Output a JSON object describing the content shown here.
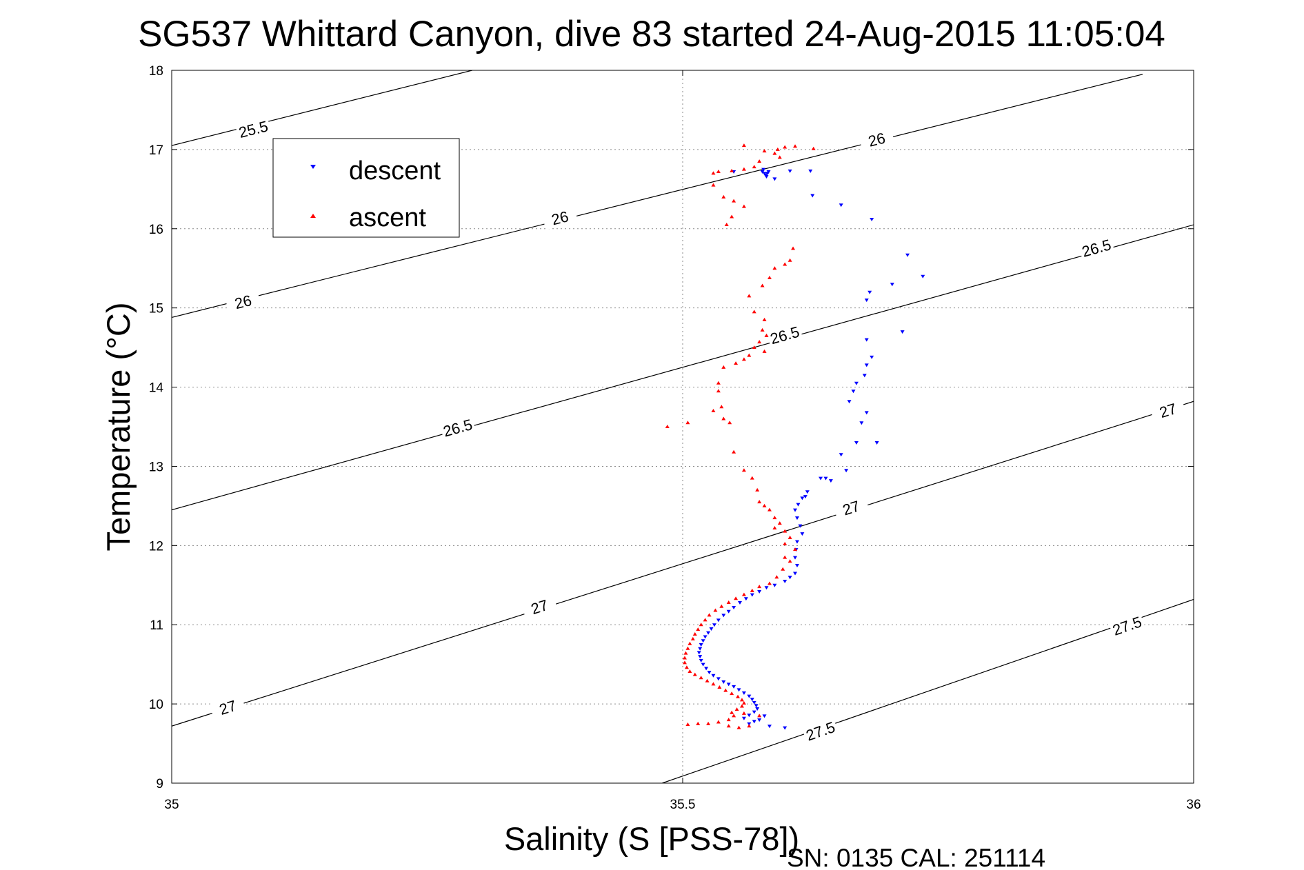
{
  "chart_data": {
    "type": "scatter",
    "title": "SG537 Whittard Canyon, dive 83 started 24-Aug-2015 11:05:04",
    "xlabel": "Salinity (S [PSS-78])",
    "ylabel": "Temperature (°C)",
    "xlim": [
      35,
      36
    ],
    "ylim": [
      9,
      18
    ],
    "xticks": [
      35,
      35.5,
      36
    ],
    "xtick_labels": [
      "35",
      "35.5",
      "36"
    ],
    "yticks": [
      9,
      10,
      11,
      12,
      13,
      14,
      15,
      16,
      17,
      18
    ],
    "ytick_labels": [
      "9",
      "10",
      "11",
      "12",
      "13",
      "14",
      "15",
      "16",
      "17",
      "18"
    ],
    "grid": true,
    "legend": {
      "position": "top-left",
      "entries": [
        "descent",
        "ascent"
      ]
    },
    "footer_text": "SN: 0135  CAL: 251114",
    "colors": {
      "descent": "#0000ff",
      "ascent": "#ff0000",
      "contour": "#000000"
    },
    "density_contours": [
      {
        "level": "25.5",
        "points": [
          [
            35.0,
            17.05
          ],
          [
            35.294,
            18.0
          ]
        ],
        "labels": [
          [
            35.08,
            17.25
          ]
        ]
      },
      {
        "level": "26",
        "points": [
          [
            35.0,
            14.88
          ],
          [
            35.95,
            17.95
          ]
        ],
        "labels": [
          [
            35.07,
            15.07
          ],
          [
            35.38,
            16.13
          ],
          [
            35.69,
            17.12
          ]
        ]
      },
      {
        "level": "26.5",
        "points": [
          [
            35.0,
            12.45
          ],
          [
            36.0,
            16.05
          ]
        ],
        "labels": [
          [
            35.28,
            13.48
          ],
          [
            35.6,
            14.65
          ],
          [
            35.905,
            15.75
          ]
        ]
      },
      {
        "level": "27",
        "points": [
          [
            35.0,
            9.72
          ],
          [
            36.0,
            13.82
          ]
        ],
        "labels": [
          [
            35.055,
            9.95
          ],
          [
            35.36,
            11.22
          ],
          [
            35.665,
            12.47
          ],
          [
            35.975,
            13.7
          ]
        ]
      },
      {
        "level": "27.5",
        "points": [
          [
            35.48,
            9.0
          ],
          [
            36.0,
            11.32
          ]
        ],
        "labels": [
          [
            35.635,
            9.65
          ],
          [
            35.935,
            10.98
          ]
        ]
      }
    ],
    "series": [
      {
        "name": "descent",
        "marker": "triangle-down",
        "points": [
          [
            35.578,
            16.72
          ],
          [
            35.58,
            16.7
          ],
          [
            35.581,
            16.68
          ],
          [
            35.582,
            16.66
          ],
          [
            35.583,
            16.7
          ],
          [
            35.579,
            16.75
          ],
          [
            35.584,
            16.72
          ],
          [
            35.55,
            16.72
          ],
          [
            35.59,
            16.63
          ],
          [
            35.605,
            16.73
          ],
          [
            35.625,
            16.73
          ],
          [
            35.627,
            16.42
          ],
          [
            35.655,
            16.3
          ],
          [
            35.685,
            16.12
          ],
          [
            35.72,
            15.67
          ],
          [
            35.735,
            15.4
          ],
          [
            35.705,
            15.3
          ],
          [
            35.683,
            15.2
          ],
          [
            35.68,
            15.1
          ],
          [
            35.715,
            14.7
          ],
          [
            35.68,
            14.6
          ],
          [
            35.685,
            14.38
          ],
          [
            35.68,
            14.28
          ],
          [
            35.678,
            14.15
          ],
          [
            35.67,
            14.05
          ],
          [
            35.667,
            13.95
          ],
          [
            35.663,
            13.82
          ],
          [
            35.68,
            13.68
          ],
          [
            35.675,
            13.55
          ],
          [
            35.69,
            13.3
          ],
          [
            35.67,
            13.3
          ],
          [
            35.655,
            13.15
          ],
          [
            35.66,
            12.95
          ],
          [
            35.64,
            12.85
          ],
          [
            35.635,
            12.85
          ],
          [
            35.645,
            12.82
          ],
          [
            35.622,
            12.68
          ],
          [
            35.62,
            12.62
          ],
          [
            35.617,
            12.6
          ],
          [
            35.613,
            12.52
          ],
          [
            35.61,
            12.45
          ],
          [
            35.612,
            12.35
          ],
          [
            35.615,
            12.25
          ],
          [
            35.617,
            12.15
          ],
          [
            35.612,
            12.05
          ],
          [
            35.611,
            11.95
          ],
          [
            35.61,
            11.85
          ],
          [
            35.612,
            11.75
          ],
          [
            35.61,
            11.65
          ],
          [
            35.605,
            11.6
          ],
          [
            35.6,
            11.55
          ],
          [
            35.59,
            11.5
          ],
          [
            35.582,
            11.47
          ],
          [
            35.575,
            11.42
          ],
          [
            35.568,
            11.38
          ],
          [
            35.562,
            11.33
          ],
          [
            35.556,
            11.28
          ],
          [
            35.55,
            11.22
          ],
          [
            35.545,
            11.17
          ],
          [
            35.54,
            11.12
          ],
          [
            35.535,
            11.06
          ],
          [
            35.531,
            11.0
          ],
          [
            35.528,
            10.95
          ],
          [
            35.525,
            10.9
          ],
          [
            35.522,
            10.85
          ],
          [
            35.52,
            10.8
          ],
          [
            35.518,
            10.75
          ],
          [
            35.517,
            10.7
          ],
          [
            35.516,
            10.65
          ],
          [
            35.517,
            10.6
          ],
          [
            35.518,
            10.55
          ],
          [
            35.52,
            10.5
          ],
          [
            35.523,
            10.45
          ],
          [
            35.526,
            10.4
          ],
          [
            35.53,
            10.36
          ],
          [
            35.535,
            10.32
          ],
          [
            35.54,
            10.28
          ],
          [
            35.545,
            10.25
          ],
          [
            35.55,
            10.22
          ],
          [
            35.555,
            10.18
          ],
          [
            35.56,
            10.14
          ],
          [
            35.565,
            10.1
          ],
          [
            35.568,
            10.06
          ],
          [
            35.57,
            10.02
          ],
          [
            35.572,
            9.98
          ],
          [
            35.573,
            9.94
          ],
          [
            35.57,
            9.9
          ],
          [
            35.565,
            9.86
          ],
          [
            35.56,
            9.82
          ],
          [
            35.57,
            9.78
          ],
          [
            35.565,
            9.75
          ],
          [
            35.575,
            9.8
          ],
          [
            35.58,
            9.85
          ],
          [
            35.585,
            9.72
          ],
          [
            35.6,
            9.7
          ]
        ]
      },
      {
        "name": "ascent",
        "marker": "triangle-up",
        "points": [
          [
            35.56,
            17.05
          ],
          [
            35.58,
            16.98
          ],
          [
            35.59,
            16.95
          ],
          [
            35.593,
            17.0
          ],
          [
            35.6,
            17.03
          ],
          [
            35.61,
            17.04
          ],
          [
            35.628,
            17.01
          ],
          [
            35.595,
            16.9
          ],
          [
            35.575,
            16.85
          ],
          [
            35.57,
            16.78
          ],
          [
            35.56,
            16.75
          ],
          [
            35.548,
            16.73
          ],
          [
            35.535,
            16.72
          ],
          [
            35.53,
            16.7
          ],
          [
            35.53,
            16.55
          ],
          [
            35.54,
            16.4
          ],
          [
            35.55,
            16.35
          ],
          [
            35.56,
            16.28
          ],
          [
            35.548,
            16.15
          ],
          [
            35.543,
            16.05
          ],
          [
            35.608,
            15.75
          ],
          [
            35.605,
            15.6
          ],
          [
            35.6,
            15.55
          ],
          [
            35.59,
            15.5
          ],
          [
            35.585,
            15.38
          ],
          [
            35.578,
            15.28
          ],
          [
            35.565,
            15.15
          ],
          [
            35.57,
            14.95
          ],
          [
            35.58,
            14.85
          ],
          [
            35.578,
            14.72
          ],
          [
            35.582,
            14.65
          ],
          [
            35.575,
            14.57
          ],
          [
            35.57,
            14.5
          ],
          [
            35.58,
            14.45
          ],
          [
            35.565,
            14.4
          ],
          [
            35.56,
            14.35
          ],
          [
            35.552,
            14.3
          ],
          [
            35.54,
            14.25
          ],
          [
            35.535,
            14.05
          ],
          [
            35.535,
            13.95
          ],
          [
            35.538,
            13.75
          ],
          [
            35.53,
            13.7
          ],
          [
            35.54,
            13.6
          ],
          [
            35.546,
            13.55
          ],
          [
            35.505,
            13.55
          ],
          [
            35.485,
            13.5
          ],
          [
            35.55,
            13.18
          ],
          [
            35.56,
            12.95
          ],
          [
            35.568,
            12.85
          ],
          [
            35.573,
            12.7
          ],
          [
            35.575,
            12.55
          ],
          [
            35.58,
            12.5
          ],
          [
            35.585,
            12.45
          ],
          [
            35.59,
            12.35
          ],
          [
            35.595,
            12.28
          ],
          [
            35.59,
            12.22
          ],
          [
            35.6,
            12.18
          ],
          [
            35.605,
            12.1
          ],
          [
            35.6,
            12.02
          ],
          [
            35.61,
            11.95
          ],
          [
            35.6,
            11.85
          ],
          [
            35.605,
            11.8
          ],
          [
            35.598,
            11.7
          ],
          [
            35.592,
            11.6
          ],
          [
            35.585,
            11.52
          ],
          [
            35.575,
            11.48
          ],
          [
            35.568,
            11.43
          ],
          [
            35.56,
            11.38
          ],
          [
            35.552,
            11.33
          ],
          [
            35.545,
            11.28
          ],
          [
            35.538,
            11.23
          ],
          [
            35.532,
            11.18
          ],
          [
            35.526,
            11.12
          ],
          [
            35.522,
            11.06
          ],
          [
            35.518,
            11.0
          ],
          [
            35.515,
            10.94
          ],
          [
            35.512,
            10.88
          ],
          [
            35.51,
            10.82
          ],
          [
            35.507,
            10.76
          ],
          [
            35.505,
            10.7
          ],
          [
            35.503,
            10.64
          ],
          [
            35.502,
            10.58
          ],
          [
            35.502,
            10.52
          ],
          [
            35.504,
            10.46
          ],
          [
            35.507,
            10.41
          ],
          [
            35.512,
            10.37
          ],
          [
            35.518,
            10.33
          ],
          [
            35.524,
            10.29
          ],
          [
            35.53,
            10.25
          ],
          [
            35.536,
            10.21
          ],
          [
            35.542,
            10.17
          ],
          [
            35.548,
            10.13
          ],
          [
            35.554,
            10.09
          ],
          [
            35.558,
            10.05
          ],
          [
            35.56,
            10.01
          ],
          [
            35.558,
            9.97
          ],
          [
            35.553,
            9.93
          ],
          [
            35.548,
            9.89
          ],
          [
            35.55,
            9.85
          ],
          [
            35.545,
            9.8
          ],
          [
            35.535,
            9.77
          ],
          [
            35.525,
            9.75
          ],
          [
            35.515,
            9.75
          ],
          [
            35.505,
            9.74
          ],
          [
            35.565,
            9.72
          ],
          [
            35.555,
            9.7
          ],
          [
            35.545,
            9.72
          ],
          [
            35.575,
            9.85
          ],
          [
            35.56,
            9.88
          ]
        ]
      }
    ]
  }
}
